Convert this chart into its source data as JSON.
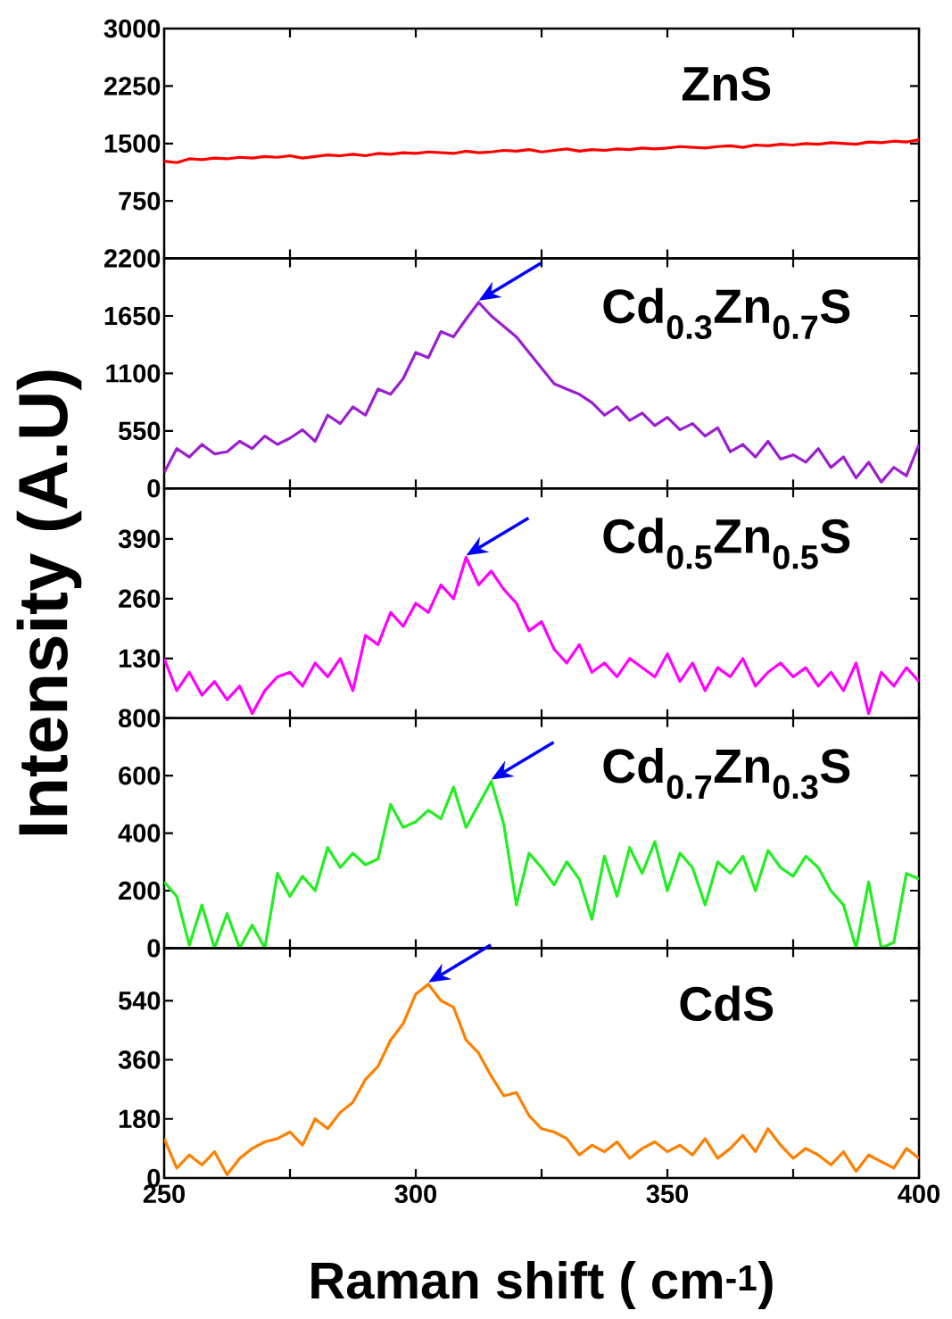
{
  "chart_data": [
    {
      "type": "line",
      "x": [
        250,
        252.5,
        255,
        257.5,
        260,
        262.5,
        265,
        267.5,
        270,
        272.5,
        275,
        277.5,
        280,
        282.5,
        285,
        287.5,
        290,
        292.5,
        295,
        297.5,
        300,
        302.5,
        305,
        307.5,
        310,
        312.5,
        315,
        317.5,
        320,
        322.5,
        325,
        327.5,
        330,
        332.5,
        335,
        337.5,
        340,
        342.5,
        345,
        347.5,
        350,
        352.5,
        355,
        357.5,
        360,
        362.5,
        365,
        367.5,
        370,
        372.5,
        375,
        377.5,
        380,
        382.5,
        385,
        387.5,
        390,
        392.5,
        395,
        397.5,
        400
      ],
      "series": [
        {
          "name": "ZnS",
          "color": "#ff0000",
          "values": [
            1270,
            1250,
            1300,
            1290,
            1310,
            1300,
            1320,
            1310,
            1330,
            1320,
            1340,
            1310,
            1330,
            1350,
            1340,
            1360,
            1340,
            1370,
            1360,
            1380,
            1370,
            1390,
            1380,
            1370,
            1400,
            1380,
            1390,
            1410,
            1400,
            1420,
            1390,
            1410,
            1430,
            1400,
            1420,
            1410,
            1430,
            1420,
            1440,
            1430,
            1440,
            1460,
            1450,
            1440,
            1460,
            1470,
            1450,
            1480,
            1470,
            1490,
            1480,
            1500,
            1490,
            1510,
            1500,
            1490,
            1520,
            1510,
            1530,
            1520,
            1550
          ]
        }
      ],
      "xlim": [
        250,
        400
      ],
      "xticks": [
        250,
        {
          "value": 275,
          "label": null
        },
        300,
        {
          "value": 325,
          "label": null
        },
        350,
        {
          "value": 375,
          "label": null
        },
        400
      ],
      "ylim": [
        0,
        3000
      ],
      "yticks": [
        750,
        1500,
        2250,
        3000
      ],
      "tick_labels": "y"
    },
    {
      "type": "line",
      "x": [
        250,
        252.5,
        255,
        257.5,
        260,
        262.5,
        265,
        267.5,
        270,
        272.5,
        275,
        277.5,
        280,
        282.5,
        285,
        287.5,
        290,
        292.5,
        295,
        297.5,
        300,
        302.5,
        305,
        307.5,
        310,
        312.5,
        315,
        317.5,
        320,
        322.5,
        325,
        327.5,
        330,
        332.5,
        335,
        337.5,
        340,
        342.5,
        345,
        347.5,
        350,
        352.5,
        355,
        357.5,
        360,
        362.5,
        365,
        367.5,
        370,
        372.5,
        375,
        377.5,
        380,
        382.5,
        385,
        387.5,
        390,
        392.5,
        395,
        397.5,
        400
      ],
      "series": [
        {
          "name": "Cd$_{0.3}$Zn$_{0.7}$S",
          "color": "#9b1fd0",
          "values": [
            150,
            380,
            300,
            420,
            330,
            350,
            450,
            380,
            500,
            420,
            480,
            560,
            450,
            700,
            620,
            780,
            700,
            950,
            900,
            1050,
            1300,
            1250,
            1500,
            1450,
            1620,
            1780,
            1650,
            1550,
            1450,
            1300,
            1150,
            1000,
            950,
            900,
            820,
            700,
            780,
            650,
            720,
            600,
            680,
            560,
            620,
            500,
            580,
            350,
            420,
            300,
            450,
            280,
            320,
            250,
            380,
            200,
            300,
            100,
            250,
            60,
            200,
            120,
            420
          ]
        }
      ],
      "xlim": [
        250,
        400
      ],
      "xticks": [
        250,
        {
          "value": 275,
          "label": null
        },
        300,
        {
          "value": 325,
          "label": null
        },
        350,
        {
          "value": 375,
          "label": null
        },
        400
      ],
      "ylim": [
        0,
        2200
      ],
      "yticks": [
        0,
        550,
        1100,
        1650,
        2200
      ],
      "tick_labels": "y"
    },
    {
      "type": "line",
      "ylabel": "Intensity (A.U)",
      "x": [
        250,
        252.5,
        255,
        257.5,
        260,
        262.5,
        265,
        267.5,
        270,
        272.5,
        275,
        277.5,
        280,
        282.5,
        285,
        287.5,
        290,
        292.5,
        295,
        297.5,
        300,
        302.5,
        305,
        307.5,
        310,
        312.5,
        315,
        317.5,
        320,
        322.5,
        325,
        327.5,
        330,
        332.5,
        335,
        337.5,
        340,
        342.5,
        345,
        347.5,
        350,
        352.5,
        355,
        357.5,
        360,
        362.5,
        365,
        367.5,
        370,
        372.5,
        375,
        377.5,
        380,
        382.5,
        385,
        387.5,
        390,
        392.5,
        395,
        397.5,
        400
      ],
      "series": [
        {
          "name": "Cd$_{0.5}$Zn$_{0.5}$S",
          "color": "#ff00ff",
          "values": [
            130,
            60,
            100,
            50,
            80,
            40,
            70,
            10,
            60,
            90,
            100,
            70,
            120,
            90,
            130,
            60,
            180,
            160,
            230,
            200,
            250,
            230,
            290,
            260,
            350,
            290,
            320,
            280,
            250,
            190,
            210,
            150,
            120,
            160,
            100,
            120,
            90,
            130,
            110,
            90,
            140,
            80,
            120,
            60,
            110,
            90,
            130,
            70,
            100,
            120,
            90,
            110,
            70,
            100,
            60,
            120,
            10,
            100,
            70,
            110,
            80
          ]
        }
      ],
      "xlim": [
        250,
        400
      ],
      "xticks": [
        250,
        {
          "value": 275,
          "label": null
        },
        300,
        {
          "value": 325,
          "label": null
        },
        350,
        {
          "value": 375,
          "label": null
        },
        400
      ],
      "ylim": [
        0,
        500
      ],
      "yticks": [
        130,
        260,
        390
      ],
      "tick_labels": "y"
    },
    {
      "type": "line",
      "x": [
        250,
        252.5,
        255,
        257.5,
        260,
        262.5,
        265,
        267.5,
        270,
        272.5,
        275,
        277.5,
        280,
        282.5,
        285,
        287.5,
        290,
        292.5,
        295,
        297.5,
        300,
        302.5,
        305,
        307.5,
        310,
        312.5,
        315,
        317.5,
        320,
        322.5,
        325,
        327.5,
        330,
        332.5,
        335,
        337.5,
        340,
        342.5,
        345,
        347.5,
        350,
        352.5,
        355,
        357.5,
        360,
        362.5,
        365,
        367.5,
        370,
        372.5,
        375,
        377.5,
        380,
        382.5,
        385,
        387.5,
        390,
        392.5,
        395,
        397.5,
        400
      ],
      "series": [
        {
          "name": "Cd$_{0.7}$Zn$_{0.3}$S",
          "color": "#22ee22",
          "values": [
            230,
            180,
            10,
            150,
            0,
            120,
            0,
            80,
            0,
            260,
            180,
            250,
            200,
            350,
            280,
            330,
            290,
            310,
            500,
            420,
            440,
            480,
            450,
            560,
            420,
            500,
            580,
            430,
            150,
            330,
            280,
            220,
            300,
            240,
            100,
            320,
            180,
            350,
            260,
            370,
            200,
            330,
            280,
            150,
            300,
            260,
            320,
            200,
            340,
            280,
            250,
            320,
            280,
            200,
            150,
            0,
            230,
            0,
            20,
            260,
            240
          ]
        }
      ],
      "xlim": [
        250,
        400
      ],
      "xticks": [
        250,
        {
          "value": 275,
          "label": null
        },
        300,
        {
          "value": 325,
          "label": null
        },
        350,
        {
          "value": 375,
          "label": null
        },
        400
      ],
      "ylim": [
        0,
        800
      ],
      "yticks": [
        0,
        200,
        400,
        600,
        800
      ],
      "tick_labels": "y"
    },
    {
      "type": "line",
      "xlabel": "Raman shift ( cm$^{-1}$)",
      "x": [
        250,
        252.5,
        255,
        257.5,
        260,
        262.5,
        265,
        267.5,
        270,
        272.5,
        275,
        277.5,
        280,
        282.5,
        285,
        287.5,
        290,
        292.5,
        295,
        297.5,
        300,
        302.5,
        305,
        307.5,
        310,
        312.5,
        315,
        317.5,
        320,
        322.5,
        325,
        327.5,
        330,
        332.5,
        335,
        337.5,
        340,
        342.5,
        345,
        347.5,
        350,
        352.5,
        355,
        357.5,
        360,
        362.5,
        365,
        367.5,
        370,
        372.5,
        375,
        377.5,
        380,
        382.5,
        385,
        387.5,
        390,
        392.5,
        395,
        397.5,
        400
      ],
      "series": [
        {
          "name": "CdS",
          "color": "#ff8000",
          "values": [
            120,
            30,
            70,
            40,
            80,
            10,
            60,
            90,
            110,
            120,
            140,
            100,
            180,
            150,
            200,
            230,
            300,
            340,
            420,
            470,
            560,
            590,
            540,
            520,
            420,
            380,
            310,
            250,
            260,
            190,
            150,
            140,
            120,
            70,
            100,
            80,
            110,
            60,
            90,
            110,
            80,
            100,
            70,
            120,
            60,
            90,
            130,
            80,
            150,
            100,
            60,
            90,
            70,
            40,
            80,
            20,
            70,
            50,
            30,
            90,
            60
          ]
        }
      ],
      "xlim": [
        250,
        400
      ],
      "xticks": [
        250,
        {
          "value": 275,
          "label": null
        },
        300,
        {
          "value": 325,
          "label": null
        },
        350,
        {
          "value": 375,
          "label": null
        },
        400
      ],
      "ylim": [
        0,
        700
      ],
      "yticks": [
        0,
        180,
        360,
        540
      ]
    }
  ]
}
